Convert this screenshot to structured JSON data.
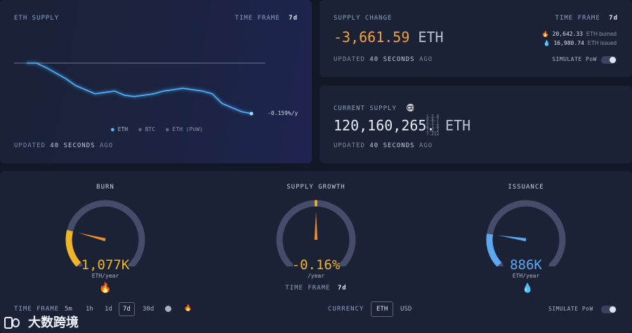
{
  "supply_panel": {
    "title": "ETH SUPPLY",
    "time_frame_label": "TIME FRAME",
    "time_frame_value": "7d",
    "chart_end_label": "-0.159%/y",
    "legend": [
      "ETH",
      "BTC",
      "ETH (PoW)"
    ],
    "updated_prefix": "UPDATED",
    "updated_value": "40 SECONDS",
    "updated_suffix": "AGO"
  },
  "chart_data": {
    "type": "line",
    "series": [
      {
        "name": "ETH",
        "values": [
          120164927,
          120164927,
          120164600,
          120164200,
          120163800,
          120163300,
          120163000,
          120162700,
          120162800,
          120162900,
          120162600,
          120162500,
          120162600,
          120162700,
          120162900,
          120163000,
          120163100,
          120163000,
          120162900,
          120162700,
          120162000,
          120161700,
          120161400,
          120161266
        ]
      },
      {
        "name": "ETH (PoW)",
        "values": [
          120164927,
          120164927
        ]
      }
    ]
  },
  "supply_change": {
    "title": "SUPPLY CHANGE",
    "time_frame_label": "TIME FRAME",
    "time_frame_value": "7d",
    "value": "-3,661.59",
    "unit": "ETH",
    "burned": "20,642.33",
    "burned_label": "ETH burned",
    "issued": "16,980.74",
    "issued_label": "ETH issued",
    "updated_prefix": "UPDATED",
    "updated_value": "40 SECONDS",
    "updated_suffix": "AGO",
    "simulate_label": "SIMULATE PoW"
  },
  "current_supply": {
    "title": "CURRENT SUPPLY",
    "value": "120,160,265.",
    "decimals": [
      "1.5.0",
      "9.8.7",
      "0.3.1",
      "4.1.8",
      "7.2.2",
      "7.212"
    ],
    "unit": "ETH",
    "updated_prefix": "UPDATED",
    "updated_value": "40 SECONDS",
    "updated_suffix": "AGO"
  },
  "gauges": {
    "burn": {
      "title": "BURN",
      "value": "1,077K",
      "unit": "ETH/year",
      "fraction": 0.22,
      "color": "#f0b429"
    },
    "growth": {
      "title": "SUPPLY GROWTH",
      "value": "-0.16%",
      "unit": "/year",
      "fraction": 0.5,
      "color": "#f0b429",
      "time_frame_label": "TIME FRAME",
      "time_frame_value": "7d"
    },
    "issuance": {
      "title": "ISSUANCE",
      "value": "886K",
      "unit": "ETH/year",
      "fraction": 0.2,
      "color": "#5aa9f0"
    }
  },
  "footer": {
    "time_frame_label": "TIME FRAME",
    "options": [
      "5m",
      "1h",
      "1d",
      "7d",
      "30d"
    ],
    "currency_label": "CURRENCY",
    "currency_eth": "ETH",
    "currency_usd": "USD",
    "simulate_label": "SIMULATE PoW"
  },
  "watermark": {
    "text": "大数跨境"
  }
}
